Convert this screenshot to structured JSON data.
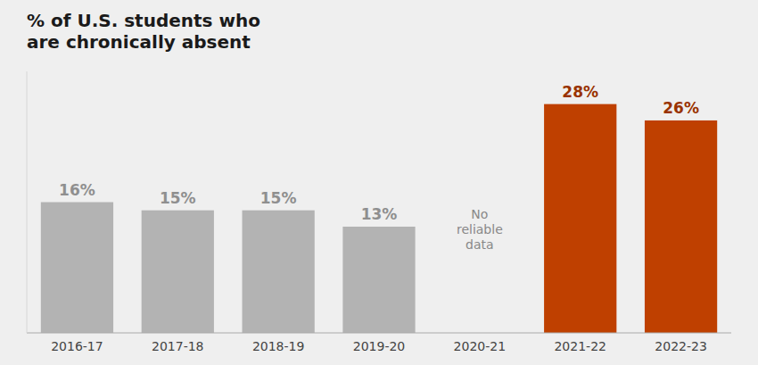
{
  "chart_data": {
    "type": "bar",
    "title": "% of U.S. students who\nare chronically absent",
    "categories": [
      "2016-17",
      "2017-18",
      "2018-19",
      "2019-20",
      "2020-21",
      "2021-22",
      "2022-23"
    ],
    "values": [
      16,
      15,
      15,
      13,
      null,
      28,
      26
    ],
    "value_labels": [
      "16%",
      "15%",
      "15%",
      "13%",
      null,
      "28%",
      "26%"
    ],
    "colors": [
      "#b3b3b3",
      "#b3b3b3",
      "#b3b3b3",
      "#b3b3b3",
      null,
      "#bf4000",
      "#bf4000"
    ],
    "data_labels": true,
    "ylim": [
      0,
      32
    ],
    "tick_labels": "x",
    "grid": false,
    "annotations": [
      {
        "text": "No\nreliable\ndata",
        "category": "2020-21"
      }
    ]
  }
}
